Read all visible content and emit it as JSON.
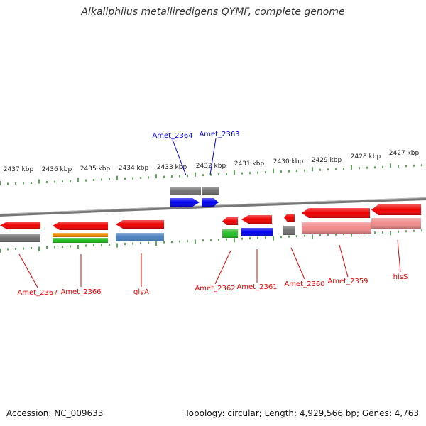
{
  "title": "Alkaliphilus metalliredigens QYMF, complete genome",
  "footer": {
    "accession": "Accession: NC_009633",
    "summary": "Topology: circular; Length: 4,929,566 bp; Genes: 4,763"
  },
  "colors": {
    "highlight": "#0000ee",
    "gene": "#ee0000",
    "gene_light": "#f08a8a",
    "grey": "#707070",
    "orange": "#f08c00",
    "green": "#22bb22",
    "steelblue": "#4a80c0",
    "tick": "#228822",
    "backbone": "#888888"
  },
  "scale": {
    "kbp_labels": [
      "2437 kbp",
      "2436 kbp",
      "2435 kbp",
      "2434 kbp",
      "2433 kbp",
      "2432 kbp",
      "2431 kbp",
      "2430 kbp",
      "2429 kbp",
      "2428 kbp",
      "2427 kbp"
    ]
  },
  "genes": [
    {
      "label": "Amet_2364",
      "color": "highlight"
    },
    {
      "label": "Amet_2363",
      "color": "highlight"
    },
    {
      "label": "Amet_2367",
      "color": "gene"
    },
    {
      "label": "Amet_2366",
      "color": "gene"
    },
    {
      "label": "glyA",
      "color": "gene"
    },
    {
      "label": "Amet_2362",
      "color": "gene"
    },
    {
      "label": "Amet_2361",
      "color": "gene"
    },
    {
      "label": "Amet_2360",
      "color": "gene"
    },
    {
      "label": "Amet_2359",
      "color": "gene"
    },
    {
      "label": "hisS",
      "color": "gene"
    }
  ]
}
